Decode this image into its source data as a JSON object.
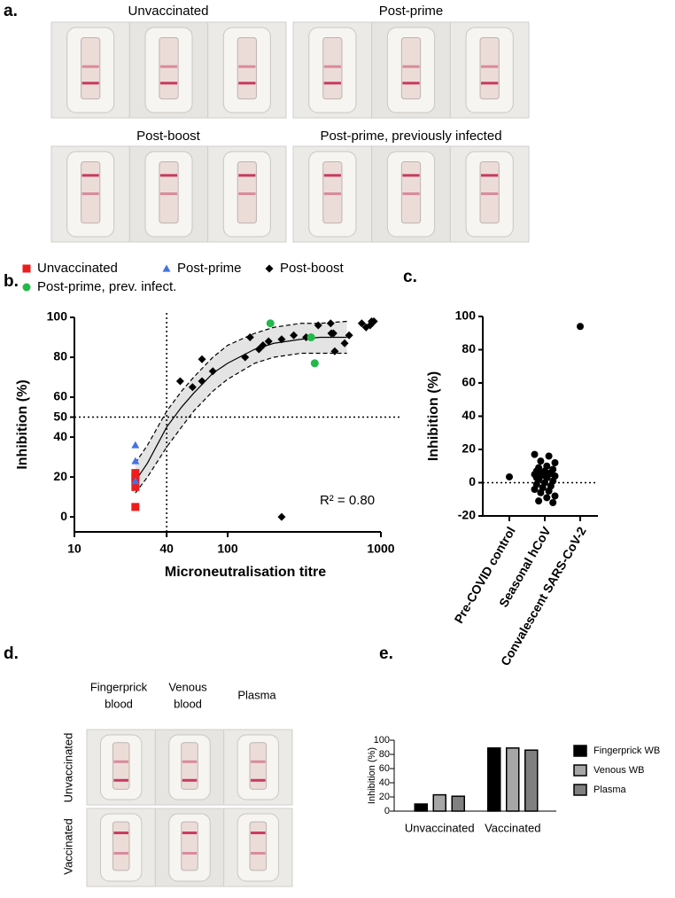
{
  "figure_a": {
    "label": "a.",
    "titles": [
      "Unvaccinated",
      "Post-prime",
      "Post-boost",
      "Post-prime, previously infected"
    ]
  },
  "figure_d": {
    "label": "d.",
    "columns": [
      [
        "Fingerprick",
        "blood"
      ],
      [
        "Venous",
        "blood"
      ],
      [
        "Plasma"
      ]
    ],
    "rows": [
      "Unvaccinated",
      "Vaccinated"
    ]
  },
  "chart_data": [
    {
      "type": "scatter",
      "panel": "b.",
      "xlabel": "Microneutralisation titre",
      "ylabel": "Inhibition (%)",
      "xscale": "log",
      "xlim": [
        10,
        1000
      ],
      "xticks": [
        10,
        40,
        100,
        1000
      ],
      "ylim": [
        -7.5,
        100
      ],
      "yticks": [
        0,
        20,
        40,
        50,
        60,
        80,
        100
      ],
      "hline": 50,
      "vline": 40,
      "annotation": "R² = 0.80",
      "series": [
        {
          "name": "Unvaccinated",
          "color": "#ee1c1c",
          "marker": "square",
          "x": [
            25,
            25,
            25,
            25,
            25
          ],
          "values": [
            5,
            15,
            18,
            20,
            22
          ]
        },
        {
          "name": "Post-prime",
          "color": "#4472e0",
          "marker": "triangle",
          "x": [
            25,
            25,
            25
          ],
          "values": [
            36,
            28,
            18
          ]
        },
        {
          "name": "Post-boost",
          "color": "#000000",
          "marker": "diamond",
          "x": [
            49,
            59,
            68,
            68,
            80,
            130,
            140,
            160,
            170,
            185,
            225,
            270,
            325,
            390,
            470,
            475,
            490,
            500,
            580,
            620,
            750,
            800,
            850,
            870,
            900,
            225
          ],
          "values": [
            68,
            65,
            68,
            79,
            73,
            80,
            90,
            84,
            86,
            88,
            89,
            91,
            90,
            96,
            97,
            92,
            92,
            83,
            87,
            91,
            97,
            95,
            96,
            98,
            98,
            0
          ]
        },
        {
          "name": "Post-prime, prev. infect.",
          "color": "#22b84a",
          "marker": "circle",
          "x": [
            190,
            350,
            370
          ],
          "values": [
            97,
            90,
            77
          ]
        }
      ],
      "fit": {
        "x": [
          25,
          30,
          40,
          50,
          60,
          80,
          100,
          150,
          200,
          300,
          400,
          600
        ],
        "values": [
          18,
          27,
          45,
          55,
          62,
          72,
          77,
          84,
          87,
          89,
          90,
          90
        ],
        "lower": [
          12,
          20,
          35,
          45,
          53,
          63,
          69,
          77,
          80,
          82,
          82,
          82
        ],
        "upper": [
          27,
          36,
          53,
          63,
          70,
          80,
          86,
          92,
          95,
          97,
          97,
          98
        ]
      }
    },
    {
      "type": "strip",
      "panel": "c.",
      "ylabel": "Inhibition (%)",
      "color": "#000000",
      "categories": [
        "Pre-COVID control",
        "Seasonal hCoV",
        "Convalescent SARS-CoV-2"
      ],
      "values": [
        [
          3.5
        ],
        [
          17,
          16,
          13,
          12,
          10,
          9,
          8,
          7,
          7,
          6,
          6,
          5,
          5,
          4,
          4,
          3,
          2,
          1,
          0,
          -1,
          -2,
          -3,
          -4,
          -5,
          -6,
          -8,
          -9,
          -11,
          -12,
          5,
          3
        ],
        [
          94
        ]
      ],
      "ylim": [
        -20,
        100
      ],
      "yticks": [
        -20,
        0,
        20,
        40,
        60,
        80,
        100
      ],
      "hline": 0
    },
    {
      "type": "bar",
      "panel": "e.",
      "ylabel": "Inhibition (%)",
      "categories": [
        "Unvaccinated",
        "Vaccinated"
      ],
      "series": [
        {
          "name": "Fingerprick WB",
          "color": "#000000",
          "values": [
            10,
            89
          ]
        },
        {
          "name": "Venous WB",
          "color": "#a6a6a6",
          "values": [
            23,
            89
          ]
        },
        {
          "name": "Plasma",
          "color": "#808080",
          "values": [
            21,
            86
          ]
        }
      ],
      "ylim": [
        0,
        100
      ],
      "yticks": [
        0,
        20,
        40,
        60,
        80,
        100
      ]
    }
  ]
}
